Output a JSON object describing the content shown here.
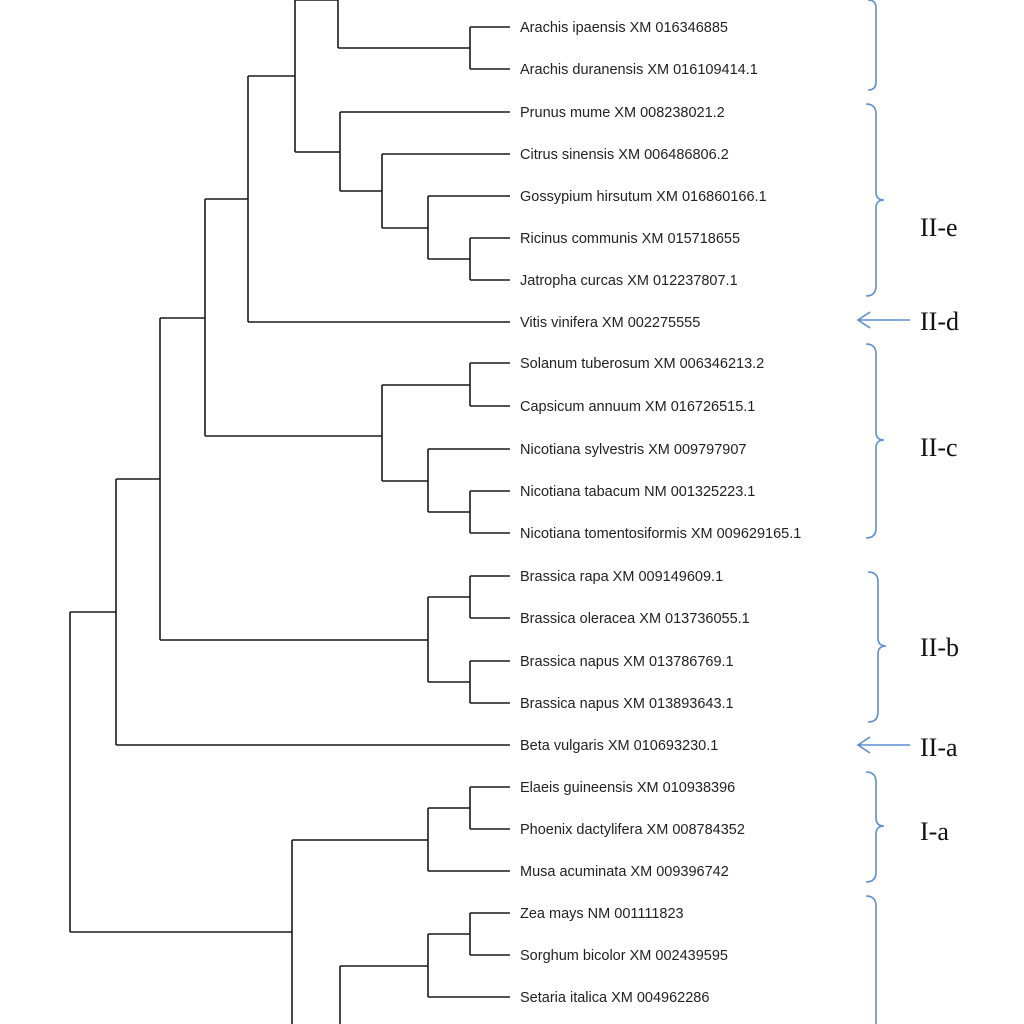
{
  "tree": {
    "leaves": [
      "Arachis ipaensis XM 016346885",
      "Arachis duranensis XM 016109414.1",
      "Prunus mume XM 008238021.2",
      "Citrus sinensis XM 006486806.2",
      "Gossypium hirsutum XM 016860166.1",
      "Ricinus communis XM 015718655",
      "Jatropha curcas XM 012237807.1",
      "Vitis vinifera XM 002275555",
      "Solanum tuberosum XM 006346213.2",
      "Capsicum annuum XM 016726515.1",
      "Nicotiana sylvestris XM 009797907",
      "Nicotiana tabacum NM 001325223.1",
      "Nicotiana tomentosiformis XM 009629165.1",
      "Brassica rapa XM 009149609.1",
      "Brassica oleracea XM 013736055.1",
      "Brassica napus XM 013786769.1",
      "Brassica napus XM 013893643.1",
      "Beta vulgaris XM 010693230.1",
      "Elaeis guineensis XM 010938396",
      "Phoenix dactylifera XM 008784352",
      "Musa acuminata XM 009396742",
      "Zea mays NM 001111823",
      "Sorghum bicolor XM 002439595",
      "Setaria italica XM 004962286"
    ]
  },
  "clades": [
    {
      "label": "II-e",
      "marker": "bracket"
    },
    {
      "label": "II-d",
      "marker": "arrow"
    },
    {
      "label": "II-c",
      "marker": "bracket"
    },
    {
      "label": "II-b",
      "marker": "bracket"
    },
    {
      "label": "II-a",
      "marker": "arrow"
    },
    {
      "label": "I-a",
      "marker": "bracket"
    }
  ],
  "colors": {
    "branch": "#1a1a1a",
    "bracket": "#5b8ed0",
    "text": "#222222"
  }
}
